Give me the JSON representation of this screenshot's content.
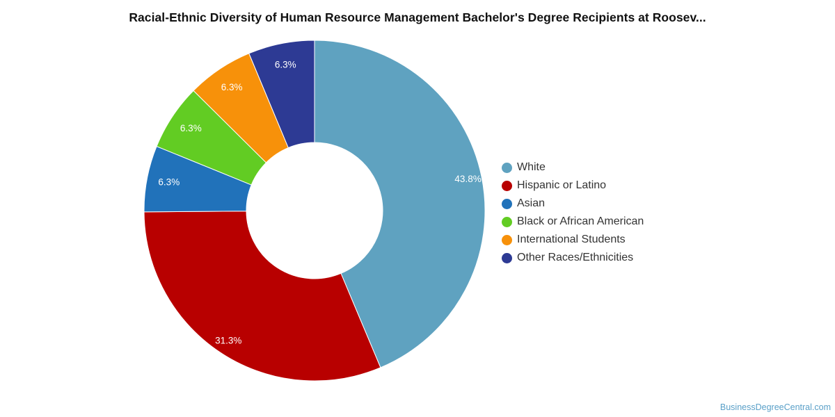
{
  "chart_data": {
    "type": "pie",
    "style": "donut",
    "title": "Racial-Ethnic Diversity of Human Resource Management Bachelor's Degree Recipients at Roosev...",
    "legend_position": "right",
    "slices": [
      {
        "name": "White",
        "value": 43.8,
        "label": "43.8%",
        "color": "#5fa2c0"
      },
      {
        "name": "Hispanic or Latino",
        "value": 31.3,
        "label": "31.3%",
        "color": "#b80000"
      },
      {
        "name": "Asian",
        "value": 6.3,
        "label": "6.3%",
        "color": "#2172ba"
      },
      {
        "name": "Black or African American",
        "value": 6.3,
        "label": "6.3%",
        "color": "#62cc23"
      },
      {
        "name": "International Students",
        "value": 6.3,
        "label": "6.3%",
        "color": "#f7910a"
      },
      {
        "name": "Other Races/Ethnicities",
        "value": 6.3,
        "label": "6.3%",
        "color": "#2d3a94"
      }
    ]
  },
  "watermark": "BusinessDegreeCentral.com"
}
